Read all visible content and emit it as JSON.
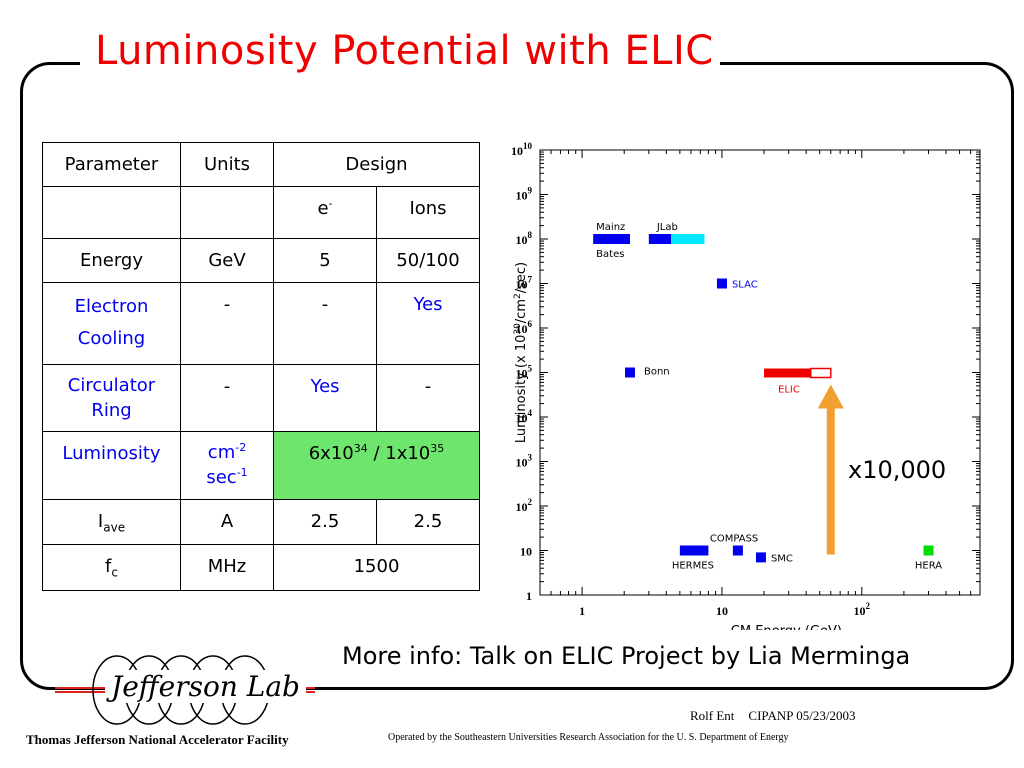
{
  "slide": {
    "title": "Luminosity Potential with ELIC",
    "more_info": "More info: Talk on ELIC Project by Lia Merminga",
    "arrow_label": "x10,000"
  },
  "table": {
    "header": {
      "parameter": "Parameter",
      "units": "Units",
      "design": "Design"
    },
    "subheader": {
      "e": "e",
      "e_sup": "-",
      "ions": "Ions"
    },
    "rows": {
      "energy": {
        "param": "Energy",
        "units": "GeV",
        "e": "5",
        "ions": "50/100"
      },
      "cooling": {
        "param_line1": "Electron",
        "param_line2": "Cooling",
        "units": "-",
        "e": "-",
        "ions": "Yes"
      },
      "ring": {
        "param_line1": "Circulator",
        "param_line2": "Ring",
        "units": "-",
        "e": "Yes",
        "ions": "-"
      },
      "lumi": {
        "param": "Luminosity",
        "units_a": "cm",
        "units_a_sup": "-2",
        "units_b": "sec",
        "units_b_sup": "-1",
        "design_a": "6x10",
        "design_a_sup": "34",
        "design_mid": " / 1x10",
        "design_b_sup": "35"
      },
      "iave": {
        "param": "I",
        "param_sub": "ave",
        "units": "A",
        "e": "2.5",
        "ions": "2.5"
      },
      "fc": {
        "param": "f",
        "param_sub": "c",
        "units": "MHz",
        "design": "1500"
      }
    }
  },
  "chart_data": {
    "type": "scatter",
    "xlabel": "CM Energy (GeV)",
    "ylabel": "Luminosity (x 10^30/cm^2/sec)",
    "xscale": "log",
    "yscale": "log",
    "xlim": [
      0.5,
      700
    ],
    "ylim": [
      1,
      10000000000.0
    ],
    "x_tick_labels": [
      "1",
      "10",
      "10^2"
    ],
    "y_tick_labels": [
      "1",
      "10",
      "10^2",
      "10^3",
      "10^4",
      "10^5",
      "10^6",
      "10^7",
      "10^8",
      "10^9",
      "10^10"
    ],
    "points": [
      {
        "label": "Mainz",
        "x_range": [
          1.2,
          2.2
        ],
        "y": 100000000.0,
        "color": "#0000ee"
      },
      {
        "label": "Bates",
        "x_range": [
          1.2,
          2.2
        ],
        "y": 100000000.0,
        "color": "#0000ee"
      },
      {
        "label": "JLab",
        "x_range": [
          3,
          7.5
        ],
        "y": 100000000.0,
        "color": "#0000ee",
        "color2": "#00e8ff"
      },
      {
        "label": "SLAC",
        "x": 10,
        "y": 10000000.0,
        "color": "#0000ee"
      },
      {
        "label": "Bonn",
        "x": 2.2,
        "y": 100000.0,
        "color": "#0000ee"
      },
      {
        "label": "ELIC",
        "x_range": [
          20,
          60
        ],
        "y": 100000.0,
        "color": "#ee0000"
      },
      {
        "label": "HERMES",
        "x_range": [
          5,
          8
        ],
        "y": 10,
        "color": "#0000ee"
      },
      {
        "label": "COMPASS",
        "x": 13,
        "y": 10,
        "color": "#0000ee"
      },
      {
        "label": "SMC",
        "x": 19,
        "y": 7,
        "color": "#0000ee"
      },
      {
        "label": "HERA",
        "x": 300,
        "y": 10,
        "color": "#00dd00"
      }
    ]
  },
  "footer": {
    "logo": "Jefferson Lab",
    "lab_name": "Thomas Jefferson National Accelerator Facility",
    "author": "Rolf Ent",
    "conference": "CIPANP 05/23/2003",
    "operated": "Operated by the Southeastern Universities Research Association for the U. S. Department of Energy"
  },
  "colors": {
    "title": "#ee0000",
    "blue_text": "#0000ee",
    "green_cell": "#6ee66e",
    "arrow": "#f0a030"
  }
}
